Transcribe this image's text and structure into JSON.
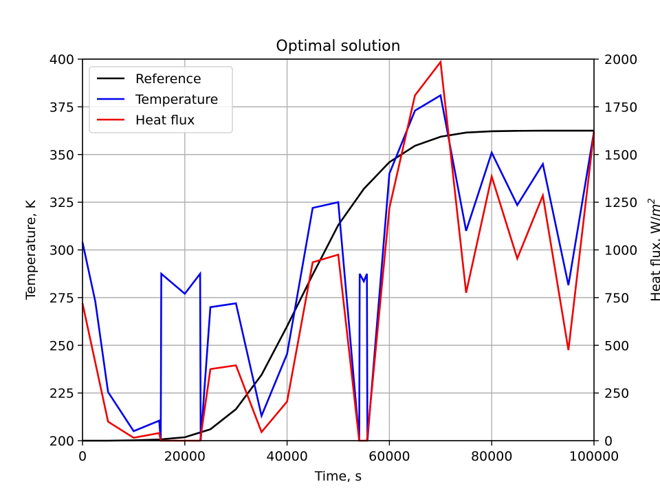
{
  "chart_data": {
    "type": "line",
    "title": "Optimal solution",
    "xlabel": "Time, s",
    "ylabel_left": "Temperature, K",
    "ylabel_right_prefix": "Heat flux, W/",
    "ylabel_right_unit_base": "m",
    "ylabel_right_unit_exp": "2",
    "xlim": [
      0,
      100000
    ],
    "ylim_left": [
      200,
      400
    ],
    "ylim_right": [
      0,
      2000
    ],
    "x_ticks": [
      "0",
      "20000",
      "40000",
      "60000",
      "80000",
      "100000"
    ],
    "y_left_ticks": [
      "200",
      "225",
      "250",
      "275",
      "300",
      "325",
      "350",
      "375",
      "400"
    ],
    "y_right_ticks": [
      "0",
      "250",
      "500",
      "750",
      "1000",
      "1250",
      "1500",
      "1750",
      "2000"
    ],
    "grid": true,
    "legend_position": "top-left",
    "series": [
      {
        "name": "Reference",
        "axis": "left",
        "color": "#000000",
        "points": [
          [
            0,
            200
          ],
          [
            5000,
            200
          ],
          [
            10000,
            200.2
          ],
          [
            15000,
            200.6
          ],
          [
            20000,
            201.8
          ],
          [
            25000,
            206
          ],
          [
            30000,
            216.5
          ],
          [
            35000,
            234.5
          ],
          [
            40000,
            260
          ],
          [
            45000,
            287
          ],
          [
            50000,
            313
          ],
          [
            55000,
            332
          ],
          [
            60000,
            346
          ],
          [
            65000,
            354.6
          ],
          [
            70000,
            359.3
          ],
          [
            75000,
            361.5
          ],
          [
            80000,
            362.2
          ],
          [
            85000,
            362.4
          ],
          [
            90000,
            362.5
          ],
          [
            95000,
            362.5
          ],
          [
            100000,
            362.5
          ]
        ]
      },
      {
        "name": "Temperature",
        "axis": "left",
        "color": "#0000ee",
        "points": [
          [
            0,
            304
          ],
          [
            2500,
            273
          ],
          [
            5000,
            225.5
          ],
          [
            10000,
            205
          ],
          [
            15000,
            210.5
          ],
          [
            15300,
            200
          ],
          [
            15400,
            287.5
          ],
          [
            20000,
            277
          ],
          [
            23000,
            287.5
          ],
          [
            23100,
            200
          ],
          [
            25000,
            270
          ],
          [
            30000,
            272
          ],
          [
            35000,
            213
          ],
          [
            40000,
            245.5
          ],
          [
            45000,
            322
          ],
          [
            50000,
            325
          ],
          [
            54100,
            200
          ],
          [
            54200,
            287.5
          ],
          [
            55000,
            283.5
          ],
          [
            55600,
            287.5
          ],
          [
            55700,
            200
          ],
          [
            60000,
            340
          ],
          [
            65000,
            373
          ],
          [
            70000,
            381
          ],
          [
            75000,
            310
          ],
          [
            80000,
            351
          ],
          [
            85000,
            323.5
          ],
          [
            90000,
            345
          ],
          [
            95000,
            281.5
          ],
          [
            100000,
            362
          ]
        ]
      },
      {
        "name": "Heat flux",
        "axis": "right",
        "color": "#ee0000",
        "points": [
          [
            0,
            720
          ],
          [
            5000,
            100
          ],
          [
            10000,
            15
          ],
          [
            15000,
            40
          ],
          [
            15300,
            0
          ],
          [
            23000,
            0
          ],
          [
            25000,
            375
          ],
          [
            30000,
            395
          ],
          [
            35000,
            45
          ],
          [
            40000,
            205
          ],
          [
            45000,
            935
          ],
          [
            50000,
            975
          ],
          [
            54100,
            0
          ],
          [
            55600,
            0
          ],
          [
            60000,
            1220
          ],
          [
            65000,
            1810
          ],
          [
            70000,
            1985
          ],
          [
            75000,
            775
          ],
          [
            80000,
            1385
          ],
          [
            85000,
            955
          ],
          [
            90000,
            1285
          ],
          [
            95000,
            475
          ],
          [
            100000,
            1620
          ]
        ]
      }
    ]
  }
}
